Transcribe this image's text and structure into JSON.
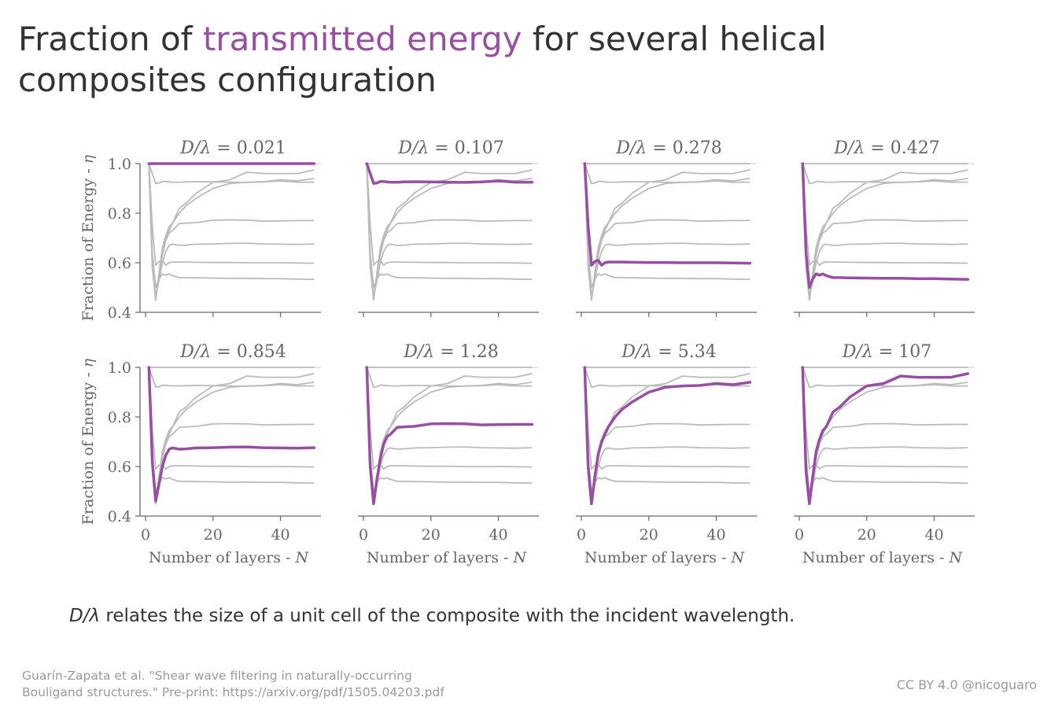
{
  "title": {
    "before": "Fraction of ",
    "highlight": "transmitted energy",
    "after": " for several helical composites configuration"
  },
  "subtitle": {
    "symbol": "D/λ",
    "text": " relates the size of a unit cell of the composite with the incident wavelength."
  },
  "reference": {
    "line1": "Guarín-Zapata et al. \"Shear wave filtering in naturally-occurring",
    "line2": "Bouligand structures.\" Pre-print: https://arxiv.org/pdf/1505.04203.pdf"
  },
  "license": "CC BY 4.0 @nicoguaro",
  "colors": {
    "highlight": "#984ea3",
    "background_lines": "#bbbbbb",
    "text": "#333333",
    "muted": "#999999",
    "axis": "#666666"
  },
  "chart_data": {
    "type": "line",
    "layout": "small-multiples 2x4",
    "xlabel_text": "Number of layers - ",
    "xlabel_symbol": "N",
    "ylabel_text": "Fraction of Energy - ",
    "ylabel_symbol": "η",
    "xlim": [
      0,
      52
    ],
    "ylim": [
      0.4,
      1.0
    ],
    "xticks": [
      "0",
      "20",
      "40"
    ],
    "yticks": [
      "0.4",
      "0.6",
      "0.8",
      "1.0"
    ],
    "panel_title_prefix": "D/λ = ",
    "x": [
      1,
      2,
      3,
      4,
      5,
      6,
      7,
      8,
      10,
      12,
      15,
      20,
      25,
      30,
      35,
      40,
      45,
      50
    ],
    "series": [
      {
        "name": "0.021",
        "values": [
          1.0,
          1.0,
          1.0,
          1.0,
          1.0,
          1.0,
          1.0,
          1.0,
          1.0,
          1.0,
          1.0,
          1.0,
          1.0,
          1.0,
          1.0,
          1.0,
          1.0,
          1.0
        ]
      },
      {
        "name": "0.107",
        "values": [
          1.0,
          0.96,
          0.92,
          0.922,
          0.928,
          0.928,
          0.926,
          0.925,
          0.925,
          0.926,
          0.927,
          0.926,
          0.925,
          0.924,
          0.926,
          0.93,
          0.925,
          0.925
        ]
      },
      {
        "name": "0.278",
        "values": [
          1.0,
          0.75,
          0.59,
          0.605,
          0.61,
          0.59,
          0.6,
          0.603,
          0.603,
          0.603,
          0.602,
          0.601,
          0.601,
          0.6,
          0.6,
          0.6,
          0.599,
          0.598
        ]
      },
      {
        "name": "0.427",
        "values": [
          1.0,
          0.64,
          0.5,
          0.535,
          0.555,
          0.55,
          0.555,
          0.548,
          0.54,
          0.54,
          0.539,
          0.538,
          0.537,
          0.537,
          0.536,
          0.536,
          0.534,
          0.533
        ]
      },
      {
        "name": "0.854",
        "values": [
          1.0,
          0.62,
          0.46,
          0.53,
          0.6,
          0.645,
          0.67,
          0.675,
          0.67,
          0.671,
          0.675,
          0.676,
          0.678,
          0.679,
          0.676,
          0.675,
          0.674,
          0.676
        ]
      },
      {
        "name": "1.28",
        "values": [
          1.0,
          0.6,
          0.45,
          0.55,
          0.63,
          0.69,
          0.72,
          0.73,
          0.758,
          0.76,
          0.762,
          0.772,
          0.773,
          0.772,
          0.768,
          0.769,
          0.77,
          0.77
        ]
      },
      {
        "name": "5.34",
        "values": [
          1.0,
          0.6,
          0.45,
          0.56,
          0.65,
          0.7,
          0.73,
          0.76,
          0.8,
          0.83,
          0.86,
          0.9,
          0.92,
          0.925,
          0.927,
          0.935,
          0.93,
          0.94
        ]
      },
      {
        "name": "107",
        "values": [
          1.0,
          0.58,
          0.45,
          0.56,
          0.66,
          0.71,
          0.745,
          0.76,
          0.82,
          0.84,
          0.88,
          0.925,
          0.935,
          0.965,
          0.96,
          0.96,
          0.96,
          0.975
        ]
      }
    ]
  }
}
